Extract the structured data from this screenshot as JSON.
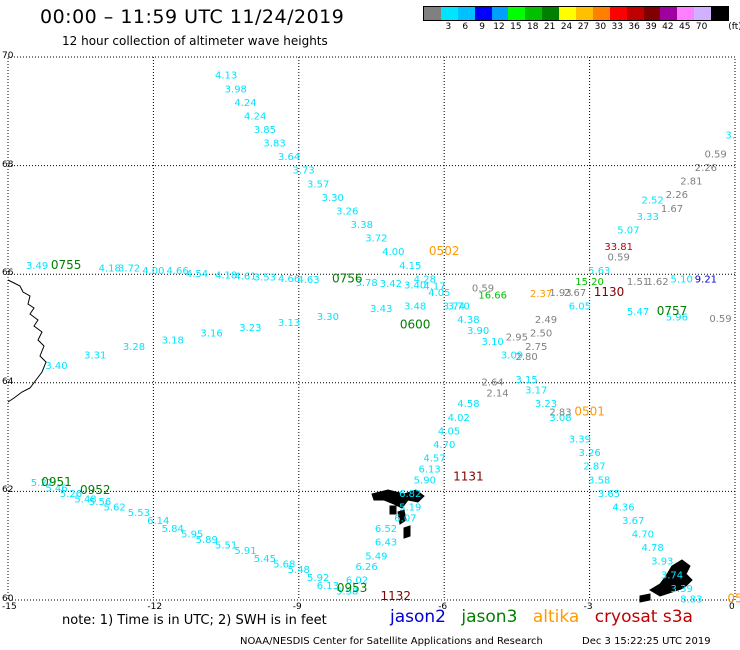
{
  "header": {
    "title": "00:00 – 11:59 UTC 11/24/2019",
    "subtitle": "12 hour collection of altimeter wave heights"
  },
  "colorbar": {
    "unit": "(ft)",
    "colors": [
      "#808080",
      "#00e5ff",
      "#00c0ff",
      "#0000ff",
      "#00a0ff",
      "#00ff00",
      "#00c000",
      "#008000",
      "#ffff00",
      "#ffc000",
      "#ff8000",
      "#ff0000",
      "#c00000",
      "#800000",
      "#a000a0",
      "#ff80ff",
      "#d0b0ff",
      "#000000"
    ],
    "labels": [
      "3",
      "6",
      "9",
      "12",
      "15",
      "18",
      "21",
      "24",
      "27",
      "30",
      "33",
      "36",
      "39",
      "42",
      "45",
      "70"
    ]
  },
  "axes": {
    "lon_labels": [
      "-15",
      "-12",
      "-9",
      "-6",
      "-3",
      "0"
    ],
    "lat_labels": [
      "70",
      "68",
      "66",
      "64",
      "62",
      "60"
    ]
  },
  "footer": {
    "note": "note: 1) Time is in UTC; 2) SWH is in feet",
    "legend": [
      {
        "name": "jason2",
        "color": "#0000d0"
      },
      {
        "name": "jason3",
        "color": "#008000"
      },
      {
        "name": "altika",
        "color": "#ff9900"
      },
      {
        "name": "cryosat s3a",
        "color": "#c00000"
      }
    ],
    "credit": "NOAA/NESDIS Center for Satellite Applications and Research",
    "timestamp": "Dec  3 15:22:25 UTC 2019"
  },
  "map_data": {
    "labels": [
      {
        "t": "4.13",
        "lon": -10.5,
        "lat": 69.6,
        "c": "#00e5ff"
      },
      {
        "t": "3.98",
        "lon": -10.3,
        "lat": 69.35,
        "c": "#00e5ff"
      },
      {
        "t": "4.24",
        "lon": -10.1,
        "lat": 69.1,
        "c": "#00e5ff"
      },
      {
        "t": "4.24",
        "lon": -9.9,
        "lat": 68.85,
        "c": "#00e5ff"
      },
      {
        "t": "3.85",
        "lon": -9.7,
        "lat": 68.6,
        "c": "#00e5ff"
      },
      {
        "t": "3.83",
        "lon": -9.5,
        "lat": 68.35,
        "c": "#00e5ff"
      },
      {
        "t": "3.64",
        "lon": -9.2,
        "lat": 68.1,
        "c": "#00e5ff"
      },
      {
        "t": "3.73",
        "lon": -8.9,
        "lat": 67.85,
        "c": "#00e5ff"
      },
      {
        "t": "3.57",
        "lon": -8.6,
        "lat": 67.6,
        "c": "#00e5ff"
      },
      {
        "t": "3.30",
        "lon": -8.3,
        "lat": 67.35,
        "c": "#00e5ff"
      },
      {
        "t": "3.26",
        "lon": -8.0,
        "lat": 67.1,
        "c": "#00e5ff"
      },
      {
        "t": "3.38",
        "lon": -7.7,
        "lat": 66.85,
        "c": "#00e5ff"
      },
      {
        "t": "3.72",
        "lon": -7.4,
        "lat": 66.6,
        "c": "#00e5ff"
      },
      {
        "t": "4.00",
        "lon": -7.05,
        "lat": 66.35,
        "c": "#00e5ff"
      },
      {
        "t": "4.15",
        "lon": -6.7,
        "lat": 66.1,
        "c": "#00e5ff"
      },
      {
        "t": "4.28",
        "lon": -6.4,
        "lat": 65.85,
        "c": "#00e5ff"
      },
      {
        "t": "4.05",
        "lon": -6.1,
        "lat": 65.6,
        "c": "#00e5ff"
      },
      {
        "t": "3.74",
        "lon": -5.8,
        "lat": 65.35,
        "c": "#00e5ff"
      },
      {
        "t": "4.38",
        "lon": -5.5,
        "lat": 65.1,
        "c": "#00e5ff"
      },
      {
        "t": "3.90",
        "lon": -5.3,
        "lat": 64.9,
        "c": "#00e5ff"
      },
      {
        "t": "3.10",
        "lon": -5.0,
        "lat": 64.7,
        "c": "#00e5ff"
      },
      {
        "t": "3.09",
        "lon": -4.6,
        "lat": 64.45,
        "c": "#00e5ff"
      },
      {
        "t": "3.15",
        "lon": -4.3,
        "lat": 64.0,
        "c": "#00e5ff"
      },
      {
        "t": "3.17",
        "lon": -4.1,
        "lat": 63.8,
        "c": "#00e5ff"
      },
      {
        "t": "3.23",
        "lon": -3.9,
        "lat": 63.55,
        "c": "#00e5ff"
      },
      {
        "t": "3.08",
        "lon": -3.6,
        "lat": 63.3,
        "c": "#00e5ff"
      },
      {
        "t": "3.39",
        "lon": -3.2,
        "lat": 62.9,
        "c": "#00e5ff"
      },
      {
        "t": "3.26",
        "lon": -3.0,
        "lat": 62.65,
        "c": "#00e5ff"
      },
      {
        "t": "2.87",
        "lon": -2.9,
        "lat": 62.4,
        "c": "#00e5ff"
      },
      {
        "t": "3.58",
        "lon": -2.8,
        "lat": 62.15,
        "c": "#00e5ff"
      },
      {
        "t": "3.65",
        "lon": -2.6,
        "lat": 61.9,
        "c": "#00e5ff"
      },
      {
        "t": "4.36",
        "lon": -2.3,
        "lat": 61.65,
        "c": "#00e5ff"
      },
      {
        "t": "3.67",
        "lon": -2.1,
        "lat": 61.4,
        "c": "#00e5ff"
      },
      {
        "t": "4.70",
        "lon": -1.9,
        "lat": 61.15,
        "c": "#00e5ff"
      },
      {
        "t": "4.78",
        "lon": -1.7,
        "lat": 60.9,
        "c": "#00e5ff"
      },
      {
        "t": "3.93",
        "lon": -1.5,
        "lat": 60.65,
        "c": "#00e5ff"
      },
      {
        "t": "3.74",
        "lon": -1.3,
        "lat": 60.4,
        "c": "#00e5ff"
      },
      {
        "t": "3.39",
        "lon": -1.1,
        "lat": 60.15,
        "c": "#00e5ff"
      },
      {
        "t": "8.83",
        "lon": -0.9,
        "lat": 59.95,
        "c": "#00e5ff"
      },
      {
        "t": "4.58",
        "lon": -5.5,
        "lat": 63.55,
        "c": "#00e5ff"
      },
      {
        "t": "4.02",
        "lon": -5.7,
        "lat": 63.3,
        "c": "#00e5ff"
      },
      {
        "t": "4.05",
        "lon": -5.9,
        "lat": 63.05,
        "c": "#00e5ff"
      },
      {
        "t": "4.70",
        "lon": -6.0,
        "lat": 62.8,
        "c": "#00e5ff"
      },
      {
        "t": "4.57",
        "lon": -6.2,
        "lat": 62.55,
        "c": "#00e5ff"
      },
      {
        "t": "6.13",
        "lon": -6.3,
        "lat": 62.35,
        "c": "#00e5ff"
      },
      {
        "t": "5.90",
        "lon": -6.4,
        "lat": 62.15,
        "c": "#00e5ff"
      },
      {
        "t": "6.82",
        "lon": -6.7,
        "lat": 61.9,
        "c": "#00e5ff"
      },
      {
        "t": "5.19",
        "lon": -6.7,
        "lat": 61.65,
        "c": "#00e5ff"
      },
      {
        "t": "6.07",
        "lon": -6.8,
        "lat": 61.45,
        "c": "#00e5ff"
      },
      {
        "t": "6.52",
        "lon": -7.2,
        "lat": 61.25,
        "c": "#00e5ff"
      },
      {
        "t": "6.43",
        "lon": -7.2,
        "lat": 61.0,
        "c": "#00e5ff"
      },
      {
        "t": "5.49",
        "lon": -7.4,
        "lat": 60.75,
        "c": "#00e5ff"
      },
      {
        "t": "6.26",
        "lon": -7.6,
        "lat": 60.55,
        "c": "#00e5ff"
      },
      {
        "t": "6.02",
        "lon": -7.8,
        "lat": 60.3,
        "c": "#00e5ff"
      },
      {
        "t": "5.58",
        "lon": -8.0,
        "lat": 60.1,
        "c": "#00e5ff"
      },
      {
        "t": "5.27",
        "lon": -14.3,
        "lat": 62.1,
        "c": "#00e5ff"
      },
      {
        "t": "5.46",
        "lon": -14.0,
        "lat": 62.0,
        "c": "#00e5ff"
      },
      {
        "t": "5.26",
        "lon": -13.7,
        "lat": 61.9,
        "c": "#00e5ff"
      },
      {
        "t": "5.48",
        "lon": -13.4,
        "lat": 61.8,
        "c": "#00e5ff"
      },
      {
        "t": "5.56",
        "lon": -13.1,
        "lat": 61.75,
        "c": "#00e5ff"
      },
      {
        "t": "5.62",
        "lon": -12.8,
        "lat": 61.65,
        "c": "#00e5ff"
      },
      {
        "t": "5.53",
        "lon": -12.3,
        "lat": 61.55,
        "c": "#00e5ff"
      },
      {
        "t": "6.14",
        "lon": -11.9,
        "lat": 61.4,
        "c": "#00e5ff"
      },
      {
        "t": "5.84",
        "lon": -11.6,
        "lat": 61.25,
        "c": "#00e5ff"
      },
      {
        "t": "5.95",
        "lon": -11.2,
        "lat": 61.15,
        "c": "#00e5ff"
      },
      {
        "t": "5.89",
        "lon": -10.9,
        "lat": 61.05,
        "c": "#00e5ff"
      },
      {
        "t": "5.51",
        "lon": -10.5,
        "lat": 60.95,
        "c": "#00e5ff"
      },
      {
        "t": "5.91",
        "lon": -10.1,
        "lat": 60.85,
        "c": "#00e5ff"
      },
      {
        "t": "5.45",
        "lon": -9.7,
        "lat": 60.7,
        "c": "#00e5ff"
      },
      {
        "t": "5.68",
        "lon": -9.3,
        "lat": 60.6,
        "c": "#00e5ff"
      },
      {
        "t": "5.48",
        "lon": -9.0,
        "lat": 60.5,
        "c": "#00e5ff"
      },
      {
        "t": "5.92",
        "lon": -8.6,
        "lat": 60.35,
        "c": "#00e5ff"
      },
      {
        "t": "6.13",
        "lon": -8.4,
        "lat": 60.2,
        "c": "#00e5ff"
      },
      {
        "t": "3.49",
        "lon": -14.4,
        "lat": 66.1,
        "c": "#00e5ff"
      },
      {
        "t": "4.18",
        "lon": -12.9,
        "lat": 66.05,
        "c": "#00e5ff"
      },
      {
        "t": "3.72",
        "lon": -12.5,
        "lat": 66.05,
        "c": "#00e5ff"
      },
      {
        "t": "4.00",
        "lon": -12.0,
        "lat": 66.0,
        "c": "#00e5ff"
      },
      {
        "t": "4.66",
        "lon": -11.5,
        "lat": 66.0,
        "c": "#00e5ff"
      },
      {
        "t": "4.54",
        "lon": -11.1,
        "lat": 65.95,
        "c": "#00e5ff"
      },
      {
        "t": "4.18",
        "lon": -10.5,
        "lat": 65.92,
        "c": "#00e5ff"
      },
      {
        "t": "4.61",
        "lon": -10.1,
        "lat": 65.9,
        "c": "#00e5ff"
      },
      {
        "t": "3.53",
        "lon": -9.7,
        "lat": 65.88,
        "c": "#00e5ff"
      },
      {
        "t": "4.66",
        "lon": -9.2,
        "lat": 65.86,
        "c": "#00e5ff"
      },
      {
        "t": "4.63",
        "lon": -8.8,
        "lat": 65.84,
        "c": "#00e5ff"
      },
      {
        "t": "3.78",
        "lon": -7.6,
        "lat": 65.78,
        "c": "#00e5ff"
      },
      {
        "t": "3.42",
        "lon": -7.1,
        "lat": 65.76,
        "c": "#00e5ff"
      },
      {
        "t": "3.40",
        "lon": -6.6,
        "lat": 65.74,
        "c": "#00e5ff"
      },
      {
        "t": "4.17",
        "lon": -6.2,
        "lat": 65.72,
        "c": "#00e5ff"
      },
      {
        "t": "3.48",
        "lon": -6.6,
        "lat": 65.35,
        "c": "#00e5ff"
      },
      {
        "t": "3.70",
        "lon": -5.7,
        "lat": 65.35,
        "c": "#00e5ff"
      },
      {
        "t": "3.43",
        "lon": -7.3,
        "lat": 65.3,
        "c": "#00e5ff"
      },
      {
        "t": "3.30",
        "lon": -8.4,
        "lat": 65.16,
        "c": "#00e5ff"
      },
      {
        "t": "3.13",
        "lon": -9.2,
        "lat": 65.05,
        "c": "#00e5ff"
      },
      {
        "t": "3.23",
        "lon": -10.0,
        "lat": 64.95,
        "c": "#00e5ff"
      },
      {
        "t": "3.16",
        "lon": -10.8,
        "lat": 64.85,
        "c": "#00e5ff"
      },
      {
        "t": "3.18",
        "lon": -11.6,
        "lat": 64.72,
        "c": "#00e5ff"
      },
      {
        "t": "3.28",
        "lon": -12.4,
        "lat": 64.6,
        "c": "#00e5ff"
      },
      {
        "t": "3.31",
        "lon": -13.2,
        "lat": 64.45,
        "c": "#00e5ff"
      },
      {
        "t": "3.40",
        "lon": -14.0,
        "lat": 64.25,
        "c": "#00e5ff"
      },
      {
        "t": "5.63",
        "lon": -2.8,
        "lat": 66.0,
        "c": "#00e5ff"
      },
      {
        "t": "5.07",
        "lon": -2.2,
        "lat": 66.75,
        "c": "#00e5ff"
      },
      {
        "t": "3.33",
        "lon": -1.8,
        "lat": 67.0,
        "c": "#00e5ff"
      },
      {
        "t": "2.52",
        "lon": -1.7,
        "lat": 67.3,
        "c": "#00e5ff"
      },
      {
        "t": "6.05",
        "lon": -3.2,
        "lat": 65.35,
        "c": "#00e5ff"
      },
      {
        "t": "5.47",
        "lon": -2.0,
        "lat": 65.25,
        "c": "#00e5ff"
      },
      {
        "t": "5.96",
        "lon": -1.2,
        "lat": 65.15,
        "c": "#00e5ff"
      },
      {
        "t": "5.10",
        "lon": -1.1,
        "lat": 65.85,
        "c": "#00e5ff"
      },
      {
        "t": "3.",
        "lon": -0.1,
        "lat": 68.5,
        "c": "#00e5ff"
      },
      {
        "t": "0.59",
        "lon": -0.4,
        "lat": 68.15,
        "c": "#808080"
      },
      {
        "t": "2.26",
        "lon": -0.6,
        "lat": 67.9,
        "c": "#808080"
      },
      {
        "t": "2.81",
        "lon": -0.9,
        "lat": 67.65,
        "c": "#808080"
      },
      {
        "t": "2.26",
        "lon": -1.2,
        "lat": 67.4,
        "c": "#808080"
      },
      {
        "t": "1.67",
        "lon": -1.3,
        "lat": 67.15,
        "c": "#808080"
      },
      {
        "t": "0.59",
        "lon": -2.4,
        "lat": 66.25,
        "c": "#808080"
      },
      {
        "t": "1.51",
        "lon": -2.0,
        "lat": 65.8,
        "c": "#808080"
      },
      {
        "t": "1.62",
        "lon": -1.6,
        "lat": 65.8,
        "c": "#808080"
      },
      {
        "t": "0.59",
        "lon": -0.3,
        "lat": 65.12,
        "c": "#808080"
      },
      {
        "t": "0.59",
        "lon": -5.2,
        "lat": 65.68,
        "c": "#808080"
      },
      {
        "t": "2.49",
        "lon": -3.9,
        "lat": 65.1,
        "c": "#808080"
      },
      {
        "t": "2.50",
        "lon": -4.0,
        "lat": 64.85,
        "c": "#808080"
      },
      {
        "t": "2.95",
        "lon": -4.5,
        "lat": 64.78,
        "c": "#808080"
      },
      {
        "t": "2.75",
        "lon": -4.1,
        "lat": 64.6,
        "c": "#808080"
      },
      {
        "t": "2.80",
        "lon": -4.3,
        "lat": 64.42,
        "c": "#808080"
      },
      {
        "t": "2.64",
        "lon": -5.0,
        "lat": 63.95,
        "c": "#808080"
      },
      {
        "t": "2.14",
        "lon": -4.9,
        "lat": 63.75,
        "c": "#808080"
      },
      {
        "t": "2.83",
        "lon": -3.6,
        "lat": 63.4,
        "c": "#808080"
      },
      {
        "t": "1.93",
        "lon": -3.6,
        "lat": 65.6,
        "c": "#808080"
      },
      {
        "t": "2.67",
        "lon": -3.3,
        "lat": 65.6,
        "c": "#808080"
      },
      {
        "t": "16.66",
        "lon": -5.0,
        "lat": 65.55,
        "c": "#00c000"
      },
      {
        "t": "15.20",
        "lon": -3.0,
        "lat": 65.8,
        "c": "#00c000"
      },
      {
        "t": "2.37",
        "lon": -4.0,
        "lat": 65.58,
        "c": "#ff9900"
      },
      {
        "t": "33.81",
        "lon": -2.4,
        "lat": 66.45,
        "c": "#c00000"
      },
      {
        "t": "9.21",
        "lon": -0.6,
        "lat": 65.85,
        "c": "#0000d0"
      }
    ],
    "pass_ids": [
      {
        "t": "0502",
        "lon": -6.0,
        "lat": 66.35,
        "c": "#ff9900"
      },
      {
        "t": "0501",
        "lon": -3.0,
        "lat": 63.4,
        "c": "#ff9900"
      },
      {
        "t": "0755",
        "lon": -13.8,
        "lat": 66.1,
        "c": "#008000"
      },
      {
        "t": "0756",
        "lon": -8.0,
        "lat": 65.85,
        "c": "#008000"
      },
      {
        "t": "0600",
        "lon": -6.6,
        "lat": 65.0,
        "c": "#008000"
      },
      {
        "t": "0757",
        "lon": -1.3,
        "lat": 65.25,
        "c": "#008000"
      },
      {
        "t": "0951",
        "lon": -14.0,
        "lat": 62.1,
        "c": "#008000"
      },
      {
        "t": "0952",
        "lon": -13.2,
        "lat": 61.95,
        "c": "#008000"
      },
      {
        "t": "0953",
        "lon": -7.9,
        "lat": 60.15,
        "c": "#008000"
      },
      {
        "t": "1130",
        "lon": -2.6,
        "lat": 65.6,
        "c": "#800000"
      },
      {
        "t": "1131",
        "lon": -5.5,
        "lat": 62.2,
        "c": "#800000"
      },
      {
        "t": "1132",
        "lon": -7.0,
        "lat": 60.0,
        "c": "#800000"
      },
      {
        "t": "05",
        "lon": 0.0,
        "lat": 59.95,
        "c": "#ff9900"
      }
    ]
  }
}
